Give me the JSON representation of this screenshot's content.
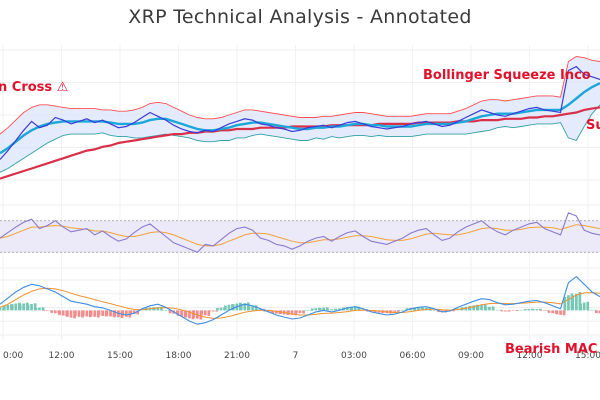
{
  "title": "XRP Technical Analysis - Annotated",
  "annotations": {
    "death_cross": "n Cross ⚠",
    "bollinger": "Bollinger Squeeze Inco",
    "support": "Su",
    "bearish_macd": "Bearish MAC"
  },
  "colors": {
    "price": "#3b3bd9",
    "sma_fast": "#1ca6d9",
    "sma_slow": "#d9304a",
    "bb_upper": "#ff4d4d",
    "bb_lower": "#2f9fa8",
    "bb_fill": "#d9e4fb",
    "rsi": "#8a7ad0",
    "rsi_signal": "#f2a23a",
    "rsi_band_fill": "#ece9f8",
    "macd": "#3f8de0",
    "macd_signal": "#f0922f",
    "hist_pos": "#77c7b5",
    "hist_neg": "#f28c8c",
    "annotation": "#e0112b"
  },
  "chart_data": {
    "type": "line",
    "x_ticks": [
      "0:00",
      "12:00",
      "15:00",
      "18:00",
      "21:00",
      "7",
      "03:00",
      "06:00",
      "09:00",
      "12:00",
      "15:00"
    ],
    "price_panel": {
      "price": [
        2.05,
        2.12,
        2.2,
        2.28,
        2.35,
        2.3,
        2.32,
        2.38,
        2.36,
        2.33,
        2.35,
        2.37,
        2.34,
        2.36,
        2.33,
        2.3,
        2.31,
        2.34,
        2.38,
        2.42,
        2.39,
        2.36,
        2.32,
        2.29,
        2.27,
        2.26,
        2.28,
        2.27,
        2.3,
        2.33,
        2.35,
        2.37,
        2.36,
        2.33,
        2.32,
        2.3,
        2.29,
        2.27,
        2.28,
        2.3,
        2.31,
        2.32,
        2.3,
        2.32,
        2.34,
        2.35,
        2.33,
        2.31,
        2.3,
        2.29,
        2.3,
        2.31,
        2.33,
        2.34,
        2.35,
        2.33,
        2.31,
        2.32,
        2.35,
        2.38,
        2.41,
        2.44,
        2.42,
        2.4,
        2.39,
        2.41,
        2.43,
        2.45,
        2.46,
        2.44,
        2.43,
        2.42,
        2.75,
        2.78,
        2.72,
        2.7,
        2.68
      ],
      "sma_fast": [
        2.1,
        2.14,
        2.19,
        2.24,
        2.28,
        2.31,
        2.33,
        2.34,
        2.35,
        2.35,
        2.35,
        2.35,
        2.35,
        2.35,
        2.34,
        2.33,
        2.33,
        2.33,
        2.34,
        2.36,
        2.37,
        2.37,
        2.35,
        2.33,
        2.31,
        2.29,
        2.28,
        2.28,
        2.29,
        2.3,
        2.32,
        2.33,
        2.34,
        2.34,
        2.33,
        2.32,
        2.31,
        2.3,
        2.29,
        2.29,
        2.3,
        2.3,
        2.31,
        2.31,
        2.32,
        2.33,
        2.33,
        2.32,
        2.32,
        2.31,
        2.31,
        2.31,
        2.31,
        2.32,
        2.33,
        2.33,
        2.33,
        2.33,
        2.34,
        2.35,
        2.37,
        2.39,
        2.4,
        2.41,
        2.41,
        2.41,
        2.42,
        2.43,
        2.44,
        2.44,
        2.44,
        2.44,
        2.48,
        2.53,
        2.58,
        2.62,
        2.65
      ],
      "sma_slow": [
        1.9,
        1.92,
        1.94,
        1.96,
        1.98,
        2,
        2.02,
        2.04,
        2.06,
        2.08,
        2.1,
        2.12,
        2.13,
        2.15,
        2.16,
        2.18,
        2.19,
        2.2,
        2.21,
        2.22,
        2.23,
        2.24,
        2.25,
        2.25,
        2.26,
        2.26,
        2.27,
        2.27,
        2.28,
        2.28,
        2.29,
        2.29,
        2.29,
        2.3,
        2.3,
        2.3,
        2.3,
        2.31,
        2.31,
        2.31,
        2.31,
        2.31,
        2.32,
        2.32,
        2.32,
        2.32,
        2.32,
        2.32,
        2.33,
        2.33,
        2.33,
        2.33,
        2.33,
        2.34,
        2.34,
        2.34,
        2.34,
        2.34,
        2.35,
        2.35,
        2.35,
        2.36,
        2.36,
        2.36,
        2.37,
        2.37,
        2.37,
        2.38,
        2.38,
        2.39,
        2.39,
        2.4,
        2.41,
        2.42,
        2.44,
        2.45,
        2.46
      ],
      "bb_upper": [
        2.25,
        2.3,
        2.36,
        2.42,
        2.46,
        2.48,
        2.48,
        2.47,
        2.46,
        2.45,
        2.45,
        2.45,
        2.45,
        2.44,
        2.44,
        2.43,
        2.43,
        2.44,
        2.46,
        2.49,
        2.5,
        2.49,
        2.46,
        2.43,
        2.4,
        2.38,
        2.37,
        2.37,
        2.38,
        2.4,
        2.42,
        2.44,
        2.44,
        2.43,
        2.42,
        2.41,
        2.4,
        2.39,
        2.38,
        2.38,
        2.38,
        2.39,
        2.39,
        2.4,
        2.41,
        2.42,
        2.42,
        2.41,
        2.4,
        2.39,
        2.39,
        2.39,
        2.39,
        2.4,
        2.41,
        2.41,
        2.41,
        2.41,
        2.43,
        2.45,
        2.48,
        2.51,
        2.52,
        2.52,
        2.51,
        2.52,
        2.53,
        2.54,
        2.55,
        2.55,
        2.55,
        2.54,
        2.82,
        2.86,
        2.85,
        2.83,
        2.82
      ],
      "bb_lower": [
        1.95,
        1.98,
        2.02,
        2.06,
        2.1,
        2.14,
        2.18,
        2.21,
        2.24,
        2.25,
        2.25,
        2.25,
        2.25,
        2.26,
        2.24,
        2.23,
        2.23,
        2.22,
        2.22,
        2.23,
        2.24,
        2.25,
        2.24,
        2.23,
        2.22,
        2.2,
        2.19,
        2.19,
        2.2,
        2.2,
        2.22,
        2.22,
        2.24,
        2.25,
        2.24,
        2.23,
        2.22,
        2.21,
        2.2,
        2.2,
        2.22,
        2.21,
        2.23,
        2.22,
        2.23,
        2.24,
        2.24,
        2.23,
        2.24,
        2.23,
        2.23,
        2.23,
        2.23,
        2.24,
        2.25,
        2.25,
        2.25,
        2.25,
        2.25,
        2.25,
        2.26,
        2.27,
        2.28,
        2.3,
        2.31,
        2.3,
        2.31,
        2.32,
        2.33,
        2.33,
        2.33,
        2.34,
        2.22,
        2.2,
        2.31,
        2.41,
        2.48
      ]
    },
    "rsi_panel": {
      "band": [
        30,
        70
      ],
      "rsi": [
        48,
        55,
        62,
        68,
        72,
        60,
        64,
        70,
        62,
        56,
        58,
        60,
        52,
        57,
        50,
        44,
        47,
        55,
        62,
        66,
        58,
        50,
        42,
        38,
        34,
        30,
        40,
        38,
        46,
        54,
        60,
        62,
        58,
        48,
        45,
        40,
        38,
        34,
        38,
        44,
        48,
        50,
        44,
        50,
        55,
        57,
        50,
        44,
        42,
        40,
        44,
        48,
        54,
        58,
        60,
        52,
        45,
        48,
        56,
        62,
        66,
        70,
        62,
        56,
        52,
        58,
        62,
        66,
        68,
        60,
        56,
        52,
        80,
        76,
        58,
        54,
        52
      ],
      "rsi_signal": [
        48,
        50,
        54,
        58,
        62,
        62,
        63,
        64,
        63,
        61,
        60,
        59,
        57,
        57,
        55,
        52,
        50,
        50,
        52,
        55,
        56,
        55,
        52,
        48,
        44,
        40,
        38,
        38,
        40,
        44,
        48,
        52,
        54,
        54,
        53,
        50,
        47,
        44,
        42,
        42,
        44,
        46,
        46,
        47,
        49,
        51,
        51,
        50,
        48,
        46,
        45,
        45,
        47,
        50,
        53,
        54,
        53,
        52,
        52,
        54,
        57,
        60,
        61,
        60,
        58,
        58,
        59,
        61,
        62,
        62,
        61,
        59,
        62,
        65,
        64,
        62,
        60
      ]
    },
    "macd_panel": {
      "macd": [
        0.2,
        0.4,
        0.6,
        0.75,
        0.85,
        0.8,
        0.7,
        0.6,
        0.45,
        0.3,
        0.25,
        0.2,
        0.12,
        0.08,
        0,
        -0.1,
        -0.15,
        -0.1,
        0.05,
        0.15,
        0.2,
        0.1,
        -0.05,
        -0.2,
        -0.35,
        -0.45,
        -0.4,
        -0.3,
        -0.15,
        0,
        0.12,
        0.2,
        0.15,
        0.05,
        -0.05,
        -0.15,
        -0.22,
        -0.28,
        -0.25,
        -0.15,
        -0.05,
        0,
        -0.05,
        0,
        0.08,
        0.12,
        0.05,
        -0.05,
        -0.1,
        -0.15,
        -0.12,
        -0.05,
        0.05,
        0.1,
        0.12,
        0.05,
        -0.05,
        -0.02,
        0.1,
        0.2,
        0.3,
        0.38,
        0.35,
        0.25,
        0.18,
        0.2,
        0.25,
        0.3,
        0.32,
        0.25,
        0.15,
        0.05,
        0.9,
        1.1,
        0.85,
        0.6,
        0.45
      ],
      "signal": [
        0.1,
        0.2,
        0.35,
        0.5,
        0.62,
        0.7,
        0.72,
        0.7,
        0.64,
        0.56,
        0.48,
        0.42,
        0.35,
        0.28,
        0.22,
        0.15,
        0.08,
        0.03,
        0.02,
        0.05,
        0.08,
        0.09,
        0.07,
        0.02,
        -0.06,
        -0.15,
        -0.22,
        -0.26,
        -0.25,
        -0.2,
        -0.13,
        -0.06,
        -0.02,
        0,
        0,
        -0.03,
        -0.07,
        -0.12,
        -0.15,
        -0.15,
        -0.13,
        -0.1,
        -0.09,
        -0.07,
        -0.04,
        0,
        0.01,
        0,
        -0.02,
        -0.05,
        -0.07,
        -0.07,
        -0.04,
        0,
        0.03,
        0.04,
        0.02,
        0.01,
        0.03,
        0.07,
        0.12,
        0.18,
        0.22,
        0.23,
        0.22,
        0.22,
        0.23,
        0.25,
        0.27,
        0.27,
        0.25,
        0.21,
        0.35,
        0.5,
        0.57,
        0.58,
        0.56
      ]
    }
  }
}
